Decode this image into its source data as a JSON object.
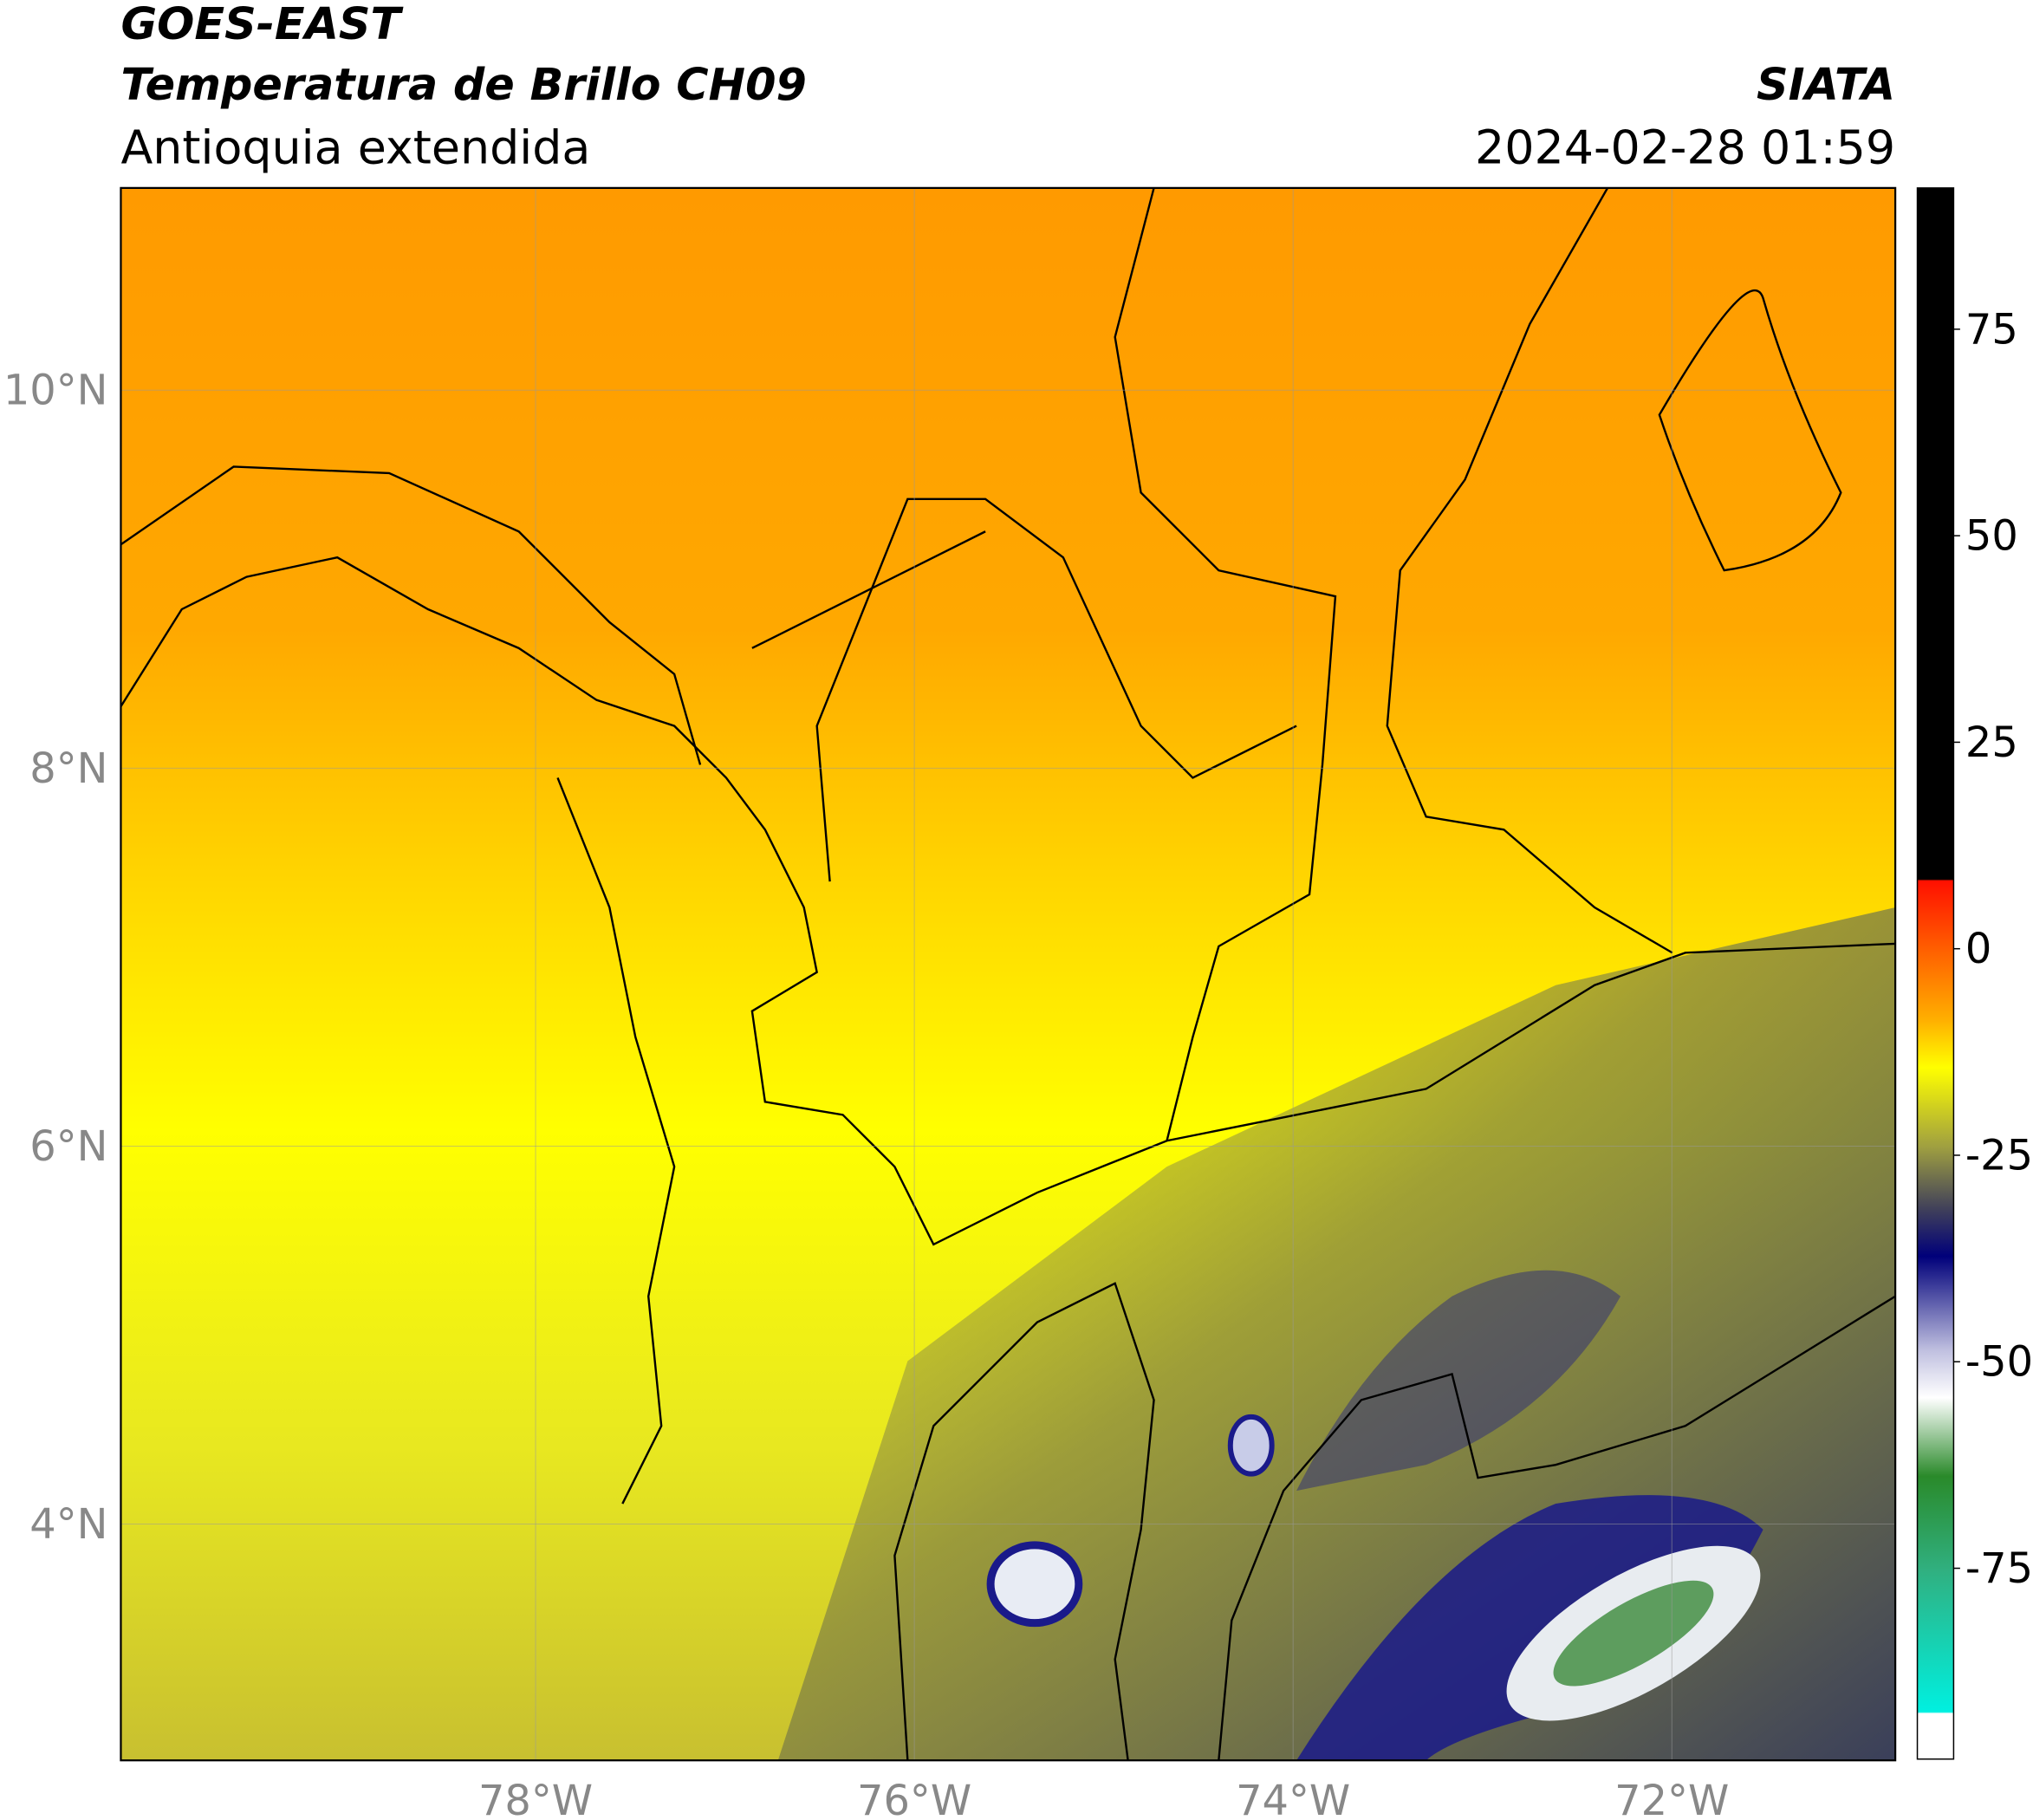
{
  "header": {
    "satellite": "GOES-EAST",
    "product": "Temperatura de Brillo CH09",
    "region": "Antioquia extendida",
    "agency": "SIATA",
    "datetime": "2024-02-28 01:59"
  },
  "map": {
    "xlim": [
      -80.19,
      -70.82
    ],
    "ylim": [
      2.75,
      11.07
    ],
    "yticks": [
      {
        "value": 10,
        "label": "10°N"
      },
      {
        "value": 8,
        "label": "8°N"
      },
      {
        "value": 6,
        "label": "6°N"
      },
      {
        "value": 4,
        "label": "4°N"
      }
    ],
    "xticks": [
      {
        "value": -78,
        "label": "78°W"
      },
      {
        "value": -76,
        "label": "76°W"
      },
      {
        "value": -74,
        "label": "74°W"
      },
      {
        "value": -72,
        "label": "72°W"
      }
    ],
    "grid": true
  },
  "colorbar": {
    "lim": [
      -98.1,
      92.1
    ],
    "ticks": [
      75,
      50,
      25,
      0,
      -25,
      -50,
      -75
    ]
  }
}
